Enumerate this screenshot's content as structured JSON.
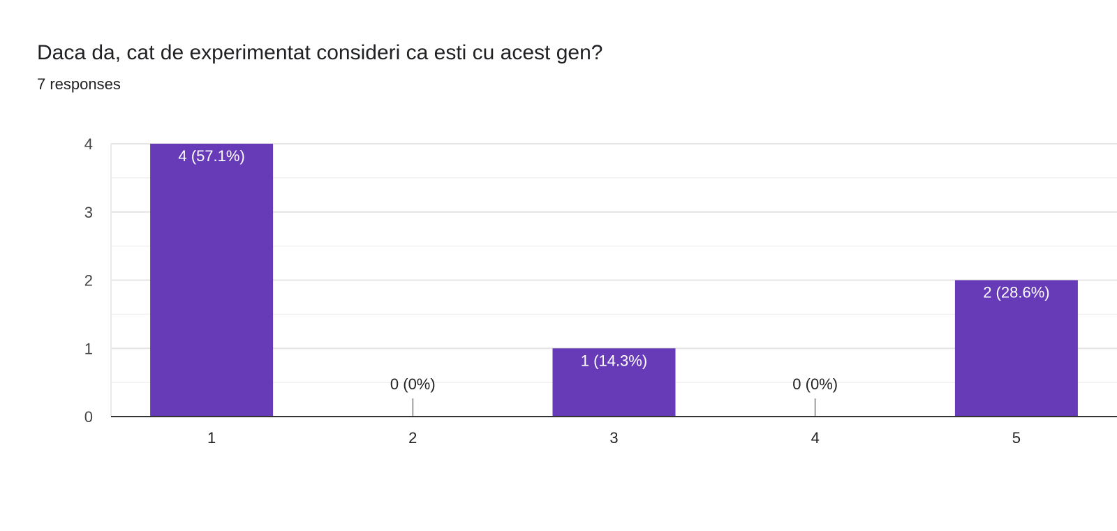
{
  "question": {
    "title": "Daca da, cat de experimentat consideri ca esti cu acest gen?",
    "responses": "7 responses"
  },
  "colors": {
    "bar": "#673ab7",
    "grid_major": "#e4e4e4",
    "grid_minor": "#f1f1f1",
    "axis": "#333333",
    "zero_stub": "#9e9e9e",
    "label_inside": "#ffffff",
    "label_outside": "#222222"
  },
  "chart_data": {
    "type": "bar",
    "title": "Daca da, cat de experimentat consideri ca esti cu acest gen?",
    "categories": [
      "1",
      "2",
      "3",
      "4",
      "5"
    ],
    "values": [
      4,
      0,
      1,
      0,
      2
    ],
    "data_labels": [
      "4 (57.1%)",
      "0 (0%)",
      "1 (14.3%)",
      "0 (0%)",
      "2 (28.6%)"
    ],
    "ylim": [
      0,
      4
    ],
    "yticks": [
      "0",
      "1",
      "2",
      "3",
      "4"
    ],
    "xlabel": "",
    "ylabel": "",
    "grid": true,
    "legend": "none"
  }
}
